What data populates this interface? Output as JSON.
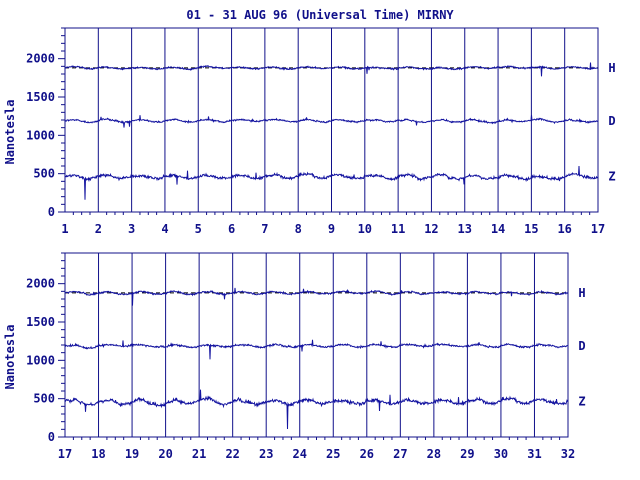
{
  "title": "01 - 31 AUG 96 (Universal Time) MIRNY",
  "colors": {
    "axis": "#10108a",
    "trace": "#1414a0",
    "baseline": "#000000",
    "background": "#ffffff"
  },
  "chart_data": [
    {
      "type": "line",
      "ylabel": "Nanotesla",
      "ylim": [
        0,
        2400
      ],
      "yticks": [
        0,
        500,
        1000,
        1500,
        2000
      ],
      "xlim": [
        1,
        17
      ],
      "xticks": [
        "1",
        "2",
        "3",
        "4",
        "5",
        "6",
        "7",
        "8",
        "9",
        "10",
        "11",
        "12",
        "13",
        "14",
        "15",
        "16",
        "17"
      ],
      "grid": "vertical lines at each day",
      "series": [
        {
          "name": "H",
          "baseline": 1880,
          "level": 1880,
          "noise": 30
        },
        {
          "name": "D",
          "level": 1190,
          "noise": 35
        },
        {
          "name": "Z",
          "level": 460,
          "noise": 60
        }
      ]
    },
    {
      "type": "line",
      "ylabel": "Nanotesla",
      "ylim": [
        0,
        2400
      ],
      "yticks": [
        0,
        500,
        1000,
        1500,
        2000
      ],
      "xlim": [
        17,
        32
      ],
      "xticks": [
        "17",
        "18",
        "19",
        "20",
        "21",
        "22",
        "23",
        "24",
        "25",
        "26",
        "27",
        "28",
        "29",
        "30",
        "31",
        "32"
      ],
      "grid": "vertical lines at each day",
      "series": [
        {
          "name": "H",
          "baseline": 1880,
          "level": 1880,
          "noise": 35
        },
        {
          "name": "D",
          "level": 1190,
          "noise": 40
        },
        {
          "name": "Z",
          "level": 460,
          "noise": 70
        }
      ]
    }
  ]
}
